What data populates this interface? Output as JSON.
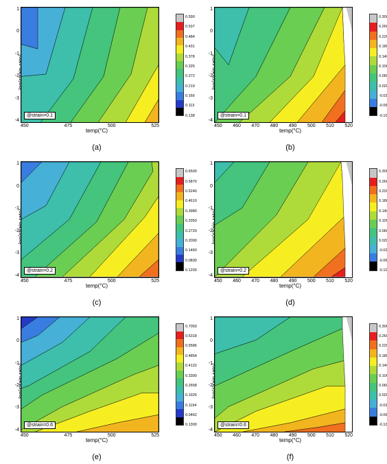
{
  "global": {
    "ylabel": "log(strain rate)",
    "xlabel": "temp(°C)"
  },
  "left": {
    "xticks": [
      "450",
      "475",
      "500",
      "525"
    ],
    "yticks": [
      "1",
      "0",
      "-1",
      "-2",
      "-3",
      "-4"
    ]
  },
  "right": {
    "xticks": [
      "450",
      "460",
      "470",
      "480",
      "490",
      "500",
      "510",
      "520"
    ],
    "yticks": [
      "1",
      "0",
      "-1",
      "-2",
      "-3",
      "-4"
    ]
  },
  "palette_left": [
    {
      "c": "#c7c7c7"
    },
    {
      "c": "#e71e1e"
    },
    {
      "c": "#f07020"
    },
    {
      "c": "#f3b51f"
    },
    {
      "c": "#f7ee22"
    },
    {
      "c": "#aedb3a"
    },
    {
      "c": "#6ace53"
    },
    {
      "c": "#44c47c"
    },
    {
      "c": "#3dbfab"
    },
    {
      "c": "#47b0d6"
    },
    {
      "c": "#3a7de0"
    },
    {
      "c": "#253bc7"
    },
    {
      "c": "#000000"
    }
  ],
  "palette_right": [
    {
      "c": "#c7c7c7"
    },
    {
      "c": "#e71e1e"
    },
    {
      "c": "#f07020"
    },
    {
      "c": "#f3b51f"
    },
    {
      "c": "#f7ee22"
    },
    {
      "c": "#aedb3a"
    },
    {
      "c": "#6ace53"
    },
    {
      "c": "#44c47c"
    },
    {
      "c": "#3dbfab"
    },
    {
      "c": "#47b0d6"
    },
    {
      "c": "#3a7de0"
    },
    {
      "c": "#000000"
    }
  ],
  "panels": [
    {
      "id": "a",
      "sub": "(a)",
      "col": "left",
      "strain": "@strain=0.1",
      "cb_labels": [
        "0.590",
        "0.537",
        "0.484",
        "0.431",
        "0.378",
        "0.325",
        "0.272",
        "0.219",
        "0.166",
        "0.113",
        "0.138"
      ],
      "bands": [
        {
          "c": "#253bc7",
          "p": "0,0 12,0 0,20"
        },
        {
          "c": "#3a7de0",
          "p": "0,0 22,0 12,36 0,32"
        },
        {
          "c": "#47b0d6",
          "p": "12,0 32,0 18,58 0,60 0,32 12,36"
        },
        {
          "c": "#3dbfab",
          "p": "32,0 52,0 38,62 14,100 0,100 0,60 18,58"
        },
        {
          "c": "#44c47c",
          "p": "52,0 72,0 60,60 36,100 14,100 38,62"
        },
        {
          "c": "#6ace53",
          "p": "72,0 92,0 80,58 56,100 36,100 60,60"
        },
        {
          "c": "#aedb3a",
          "p": "92,0 100,0 100,50 76,100 56,100 80,58"
        },
        {
          "c": "#f7ee22",
          "p": "100,50 100,80 90,100 76,100"
        },
        {
          "c": "#f3b51f",
          "p": "100,80 100,100 90,100"
        }
      ]
    },
    {
      "id": "b",
      "sub": "(b)",
      "col": "right",
      "strain": "@strain=0.1",
      "cb_labels": [
        "0.300",
        "0.260",
        "0.220",
        "0.180",
        "0.140",
        "0.100",
        "0.0600",
        "0.0200",
        "-0.0200",
        "-0.0600",
        "-0.100"
      ],
      "bands": [
        {
          "c": "#3dbfab",
          "p": "0,0 25,0 10,50 0,35"
        },
        {
          "c": "#44c47c",
          "p": "25,0 55,0 30,60 0,100 0,35 10,50"
        },
        {
          "c": "#6ace53",
          "p": "55,0 80,0 55,60 18,100 0,100 30,60"
        },
        {
          "c": "#aedb3a",
          "p": "80,0 93,0 94,30 72,60 40,100 18,100 55,60"
        },
        {
          "c": "#f7ee22",
          "p": "93,0 94,30 95,50 60,100 40,100 72,60"
        },
        {
          "c": "#f3b51f",
          "p": "95,50 95,72 78,100 60,100"
        },
        {
          "c": "#f07020",
          "p": "95,72 95,90 88,100 78,100"
        },
        {
          "c": "#e71e1e",
          "p": "95,90 95,100 88,100"
        }
      ],
      "gray_corner": true
    },
    {
      "id": "c",
      "sub": "(c)",
      "col": "left",
      "strain": "@strain=0.2",
      "cb_labels": [
        "0.6500",
        "0.5870",
        "0.5240",
        "0.4610",
        "0.3980",
        "0.3350",
        "0.2720",
        "0.2090",
        "0.1460",
        "0.0830",
        "0.1200"
      ],
      "bands": [
        {
          "c": "#3a7de0",
          "p": "0,0 15,0 0,18"
        },
        {
          "c": "#47b0d6",
          "p": "15,0 35,0 18,38 0,50 0,18"
        },
        {
          "c": "#3dbfab",
          "p": "35,0 58,0 35,50 0,85 0,50 18,38"
        },
        {
          "c": "#44c47c",
          "p": "58,0 78,0 55,52 10,100 0,100 0,85 35,50"
        },
        {
          "c": "#6ace53",
          "p": "78,0 95,0 96,8 75,50 30,100 10,100 55,52"
        },
        {
          "c": "#aedb3a",
          "p": "95,0 100,0 100,30 90,48 50,100 30,100 75,50 96,8"
        },
        {
          "c": "#f7ee22",
          "p": "100,30 100,62 70,100 50,100 90,48"
        },
        {
          "c": "#f3b51f",
          "p": "100,62 100,85 86,100 70,100"
        },
        {
          "c": "#f07020",
          "p": "100,85 100,100 86,100"
        }
      ]
    },
    {
      "id": "d",
      "sub": "(d)",
      "col": "right",
      "strain": "@strain=0.2",
      "cb_labels": [
        "0.300",
        "0.260",
        "0.220",
        "0.180",
        "0.140",
        "0.100",
        "0.0600",
        "0.0200",
        "-0.0200",
        "-0.0600",
        "-0.100"
      ],
      "bands": [
        {
          "c": "#3dbfab",
          "p": "0,0 14,0 0,18"
        },
        {
          "c": "#44c47c",
          "p": "14,0 40,0 20,40 0,55 0,18"
        },
        {
          "c": "#6ace53",
          "p": "40,0 68,0 45,46 0,100 0,55 20,40"
        },
        {
          "c": "#aedb3a",
          "p": "68,0 92,0 93,15 68,50 20,100 0,100 45,46"
        },
        {
          "c": "#f7ee22",
          "p": "92,0 93,15 94,48 48,100 20,100 68,50"
        },
        {
          "c": "#f3b51f",
          "p": "94,48 95,75 72,100 48,100"
        },
        {
          "c": "#f07020",
          "p": "95,75 95,92 85,100 72,100"
        },
        {
          "c": "#e71e1e",
          "p": "95,92 95,100 85,100"
        }
      ],
      "gray_corner": true
    },
    {
      "id": "e",
      "sub": "(e)",
      "col": "left",
      "strain": "@strain=0.6",
      "cb_labels": [
        "0.7050",
        "0.6318",
        "0.5586",
        "0.4854",
        "0.4122",
        "0.3390",
        "0.2658",
        "0.1926",
        "0.1194",
        "0.0462",
        "0.1300"
      ],
      "bands": [
        {
          "c": "#253bc7",
          "p": "0,0 12,0 0,10"
        },
        {
          "c": "#3a7de0",
          "p": "12,0 28,0 12,16 0,22 0,10"
        },
        {
          "c": "#47b0d6",
          "p": "28,0 50,0 30,22 0,42 0,22 12,16"
        },
        {
          "c": "#3dbfab",
          "p": "50,0 76,0 50,30 5,60 0,62 0,42 30,22"
        },
        {
          "c": "#44c47c",
          "p": "76,0 100,0 100,14 70,36 15,68 0,80 0,62 5,60 50,30"
        },
        {
          "c": "#6ace53",
          "p": "100,14 100,42 82,50 30,78 0,98 0,80 15,68 70,36"
        },
        {
          "c": "#aedb3a",
          "p": "100,42 100,66 88,66 50,82 10,100 0,100 0,98 30,78 82,50"
        },
        {
          "c": "#f7ee22",
          "p": "100,66 100,85 70,92 40,100 10,100 50,82 88,66"
        },
        {
          "c": "#f3b51f",
          "p": "100,85 100,100 40,100 70,92"
        }
      ]
    },
    {
      "id": "f",
      "sub": "(f)",
      "col": "right",
      "strain": "@strain=0.6",
      "cb_labels": [
        "0.300",
        "0.260",
        "0.220",
        "0.180",
        "0.140",
        "0.100",
        "0.0600",
        "0.0200",
        "-0.0200",
        "-0.0600",
        "-0.100"
      ],
      "bands": [
        {
          "c": "#3dbfab",
          "p": "0,0 55,0 30,20 0,32"
        },
        {
          "c": "#44c47c",
          "p": "55,0 93,0 93,10 55,30 0,60 0,32 30,20"
        },
        {
          "c": "#6ace53",
          "p": "93,10 94,38 72,45 10,78 0,88 0,60 55,30"
        },
        {
          "c": "#aedb3a",
          "p": "94,38 95,60 82,60 30,82 0,100 0,88 10,78 72,45"
        },
        {
          "c": "#f7ee22",
          "p": "95,60 95,80 55,92 20,100 0,100 30,82 82,60"
        },
        {
          "c": "#f3b51f",
          "p": "95,80 95,92 75,96 50,100 20,100 55,92"
        },
        {
          "c": "#f07020",
          "p": "95,92 95,100 50,100 75,96"
        }
      ],
      "gray_corner": true
    }
  ]
}
